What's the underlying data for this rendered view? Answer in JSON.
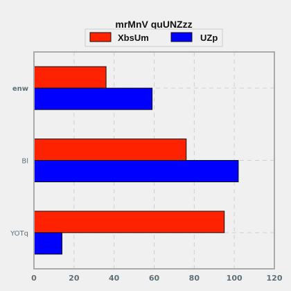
{
  "chart_data": {
    "type": "bar",
    "orientation": "horizontal",
    "title": "mrMnV quUNZzz",
    "xlabel": "",
    "ylabel": "",
    "categories": [
      "enw",
      "Bl",
      "YOTq"
    ],
    "series": [
      {
        "name": "XbsUm",
        "color": "#ff2200",
        "values": [
          36,
          76,
          95
        ]
      },
      {
        "name": "UZp",
        "color": "#0000ff",
        "values": [
          59,
          102,
          14
        ]
      }
    ],
    "xlim": [
      0,
      120
    ],
    "xticks": [
      0,
      20,
      40,
      60,
      80,
      100,
      120
    ],
    "grid": true,
    "legend_position": "top"
  }
}
